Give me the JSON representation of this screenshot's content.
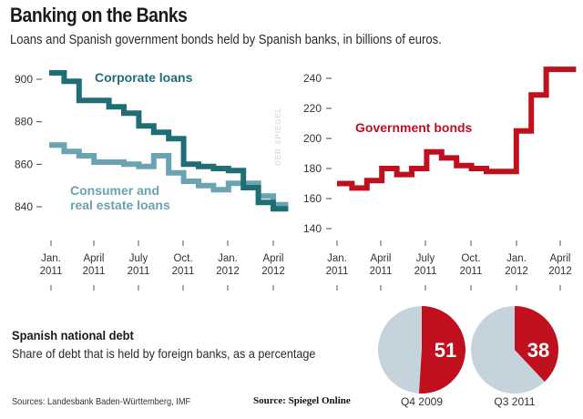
{
  "header": {
    "title": "Banking on the Banks",
    "subtitle": "Loans and Spanish government bonds held by Spanish banks, in billions of euros."
  },
  "colors": {
    "corporate": "#1f6e76",
    "consumer": "#6aa3b1",
    "bonds": "#c0101e",
    "pie_foreign": "#c0101e",
    "pie_other": "#c5d3dc"
  },
  "watermark": "DER SPIEGEL",
  "chart_data": [
    {
      "type": "line",
      "step": true,
      "title": "",
      "xlabel": "",
      "ylabel": "",
      "x_ticks": [
        {
          "line1": "Jan.",
          "line2": "2011"
        },
        {
          "line1": "April",
          "line2": "2011"
        },
        {
          "line1": "July",
          "line2": "2011"
        },
        {
          "line1": "Oct.",
          "line2": "2011"
        },
        {
          "line1": "Jan.",
          "line2": "2012"
        },
        {
          "line1": "April",
          "line2": "2012"
        }
      ],
      "x_months_start": "Jan. 2011",
      "ylim": [
        835,
        905
      ],
      "y_ticks": [
        900,
        880,
        860,
        840
      ],
      "grid": false,
      "series": [
        {
          "name": "Corporate loans",
          "color_key": "corporate",
          "values": [
            903,
            899,
            890,
            890,
            887,
            884,
            878,
            875,
            872,
            860,
            859,
            858,
            857,
            849,
            842,
            839
          ]
        },
        {
          "name": "Consumer and real estate loans",
          "label_lines": [
            "Consumer and",
            "real estate loans"
          ],
          "color_key": "consumer",
          "values": [
            869,
            866,
            864,
            861,
            861,
            860,
            859,
            864,
            856,
            852,
            850,
            848,
            851,
            851,
            845,
            841
          ]
        }
      ]
    },
    {
      "type": "line",
      "step": true,
      "title": "",
      "xlabel": "",
      "ylabel": "",
      "x_ticks": [
        {
          "line1": "Jan.",
          "line2": "2011"
        },
        {
          "line1": "April",
          "line2": "2011"
        },
        {
          "line1": "July",
          "line2": "2011"
        },
        {
          "line1": "Oct.",
          "line2": "2011"
        },
        {
          "line1": "Jan.",
          "line2": "2012"
        },
        {
          "line1": "April",
          "line2": "2012"
        }
      ],
      "x_months_start": "Jan. 2011",
      "ylim": [
        135,
        250
      ],
      "y_ticks": [
        240,
        220,
        200,
        180,
        160,
        140
      ],
      "grid": false,
      "series": [
        {
          "name": "Government bonds",
          "color_key": "bonds",
          "values": [
            170,
            167,
            172,
            180,
            176,
            180,
            191,
            187,
            182,
            180,
            178,
            178,
            205,
            229,
            246,
            246
          ]
        }
      ]
    },
    {
      "type": "pie",
      "title": "Spanish national debt",
      "subtitle": "Share of debt that is held by foreign banks, as a percentage",
      "pies": [
        {
          "label": "Q4 2009",
          "value": 51
        },
        {
          "label": "Q3 2011",
          "value": 38
        }
      ]
    }
  ],
  "footer": {
    "sources": "Sources: Landesbank Baden-Württemberg, IMF",
    "source2": "Source:  Spiegel Online"
  }
}
